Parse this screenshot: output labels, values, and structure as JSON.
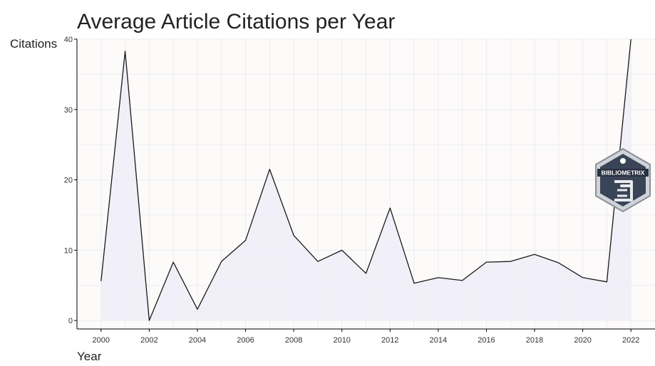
{
  "chart_data": {
    "type": "area",
    "title": "Average Article Citations per Year",
    "xlabel": "Year",
    "ylabel": "Citations",
    "x": [
      2000,
      2001,
      2002,
      2003,
      2004,
      2005,
      2006,
      2007,
      2008,
      2009,
      2010,
      2011,
      2012,
      2013,
      2014,
      2015,
      2016,
      2017,
      2018,
      2019,
      2020,
      2021,
      2022
    ],
    "series": [
      {
        "values": [
          5.6,
          38.3,
          0.0,
          8.3,
          1.6,
          8.4,
          11.4,
          21.5,
          12.1,
          8.4,
          10.0,
          6.7,
          16.0,
          5.3,
          6.1,
          5.7,
          8.3,
          8.4,
          9.4,
          8.2,
          6.1,
          5.5,
          40.0
        ]
      }
    ],
    "xlim": [
      1999.0,
      2023.0
    ],
    "ylim": [
      -1.2,
      40
    ],
    "x_ticks": [
      "2000",
      "2002",
      "2004",
      "2006",
      "2008",
      "2010",
      "2012",
      "2014",
      "2016",
      "2018",
      "2020",
      "2022"
    ],
    "y_ticks": [
      "0",
      "10",
      "20",
      "30",
      "40"
    ],
    "grid": true,
    "line_color": "#1a1a1a",
    "fill_color": "#efecf8",
    "logo": {
      "text": "BIBLIOMETRIX",
      "icon": "bibliometrix-logo-icon"
    }
  }
}
